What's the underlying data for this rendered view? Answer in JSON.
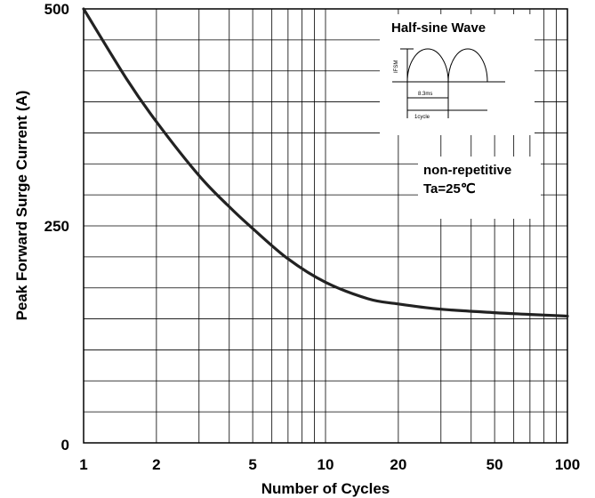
{
  "chart_data": {
    "type": "line",
    "xlabel": "Number of Cycles",
    "ylabel": "Peak Forward Surge Current (A)",
    "x_scale": "log",
    "xlim": [
      1,
      100
    ],
    "ylim": [
      0,
      500
    ],
    "x_ticks": [
      "1",
      "2",
      "5",
      "10",
      "20",
      "50",
      "100"
    ],
    "y_ticks": [
      "0",
      "250",
      "500"
    ],
    "grid": true,
    "series": [
      {
        "x": [
          1,
          1.5,
          2,
          3,
          4,
          5,
          7,
          10,
          15,
          20,
          30,
          50,
          70,
          100
        ],
        "y": [
          500,
          420,
          370,
          308,
          272,
          247,
          212,
          185,
          166,
          160,
          154,
          150,
          148,
          146
        ]
      }
    ],
    "annotations": {
      "inset_title": "Half-sine Wave",
      "inset_ifsm": "IFSM",
      "inset_period": "8.3ms",
      "inset_cycle": "1cycle",
      "note_line1": "non-repetitive",
      "note_line2": "Ta=25℃"
    }
  }
}
